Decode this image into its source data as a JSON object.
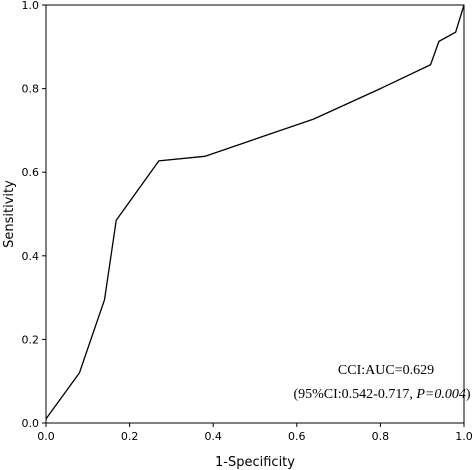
{
  "chart_data": {
    "type": "line",
    "title": "",
    "xlabel": "1-Specificity",
    "ylabel": "Sensitivity",
    "xlim": [
      0,
      1
    ],
    "ylim": [
      0,
      1
    ],
    "xticks": [
      "0.0",
      "0.2",
      "0.4",
      "0.6",
      "0.8",
      "1.0"
    ],
    "yticks": [
      "0.0",
      "0.2",
      "0.4",
      "0.6",
      "0.8",
      "1.0"
    ],
    "grid": false,
    "legend": "none",
    "series": [
      {
        "color": "#000000",
        "x": [
          0.0,
          0.08,
          0.14,
          0.168,
          0.27,
          0.38,
          0.64,
          0.8,
          0.92,
          0.94,
          0.98,
          1.0
        ],
        "y": [
          0.01,
          0.12,
          0.295,
          0.485,
          0.627,
          0.638,
          0.727,
          0.8,
          0.857,
          0.913,
          0.935,
          1.0
        ]
      }
    ],
    "annotations": {
      "line1": "CCI:AUC=0.629",
      "line2_prefix": "(95%CI:0.542-0.717, ",
      "line2_italic": "P=0.004",
      "line2_suffix": ")"
    }
  }
}
